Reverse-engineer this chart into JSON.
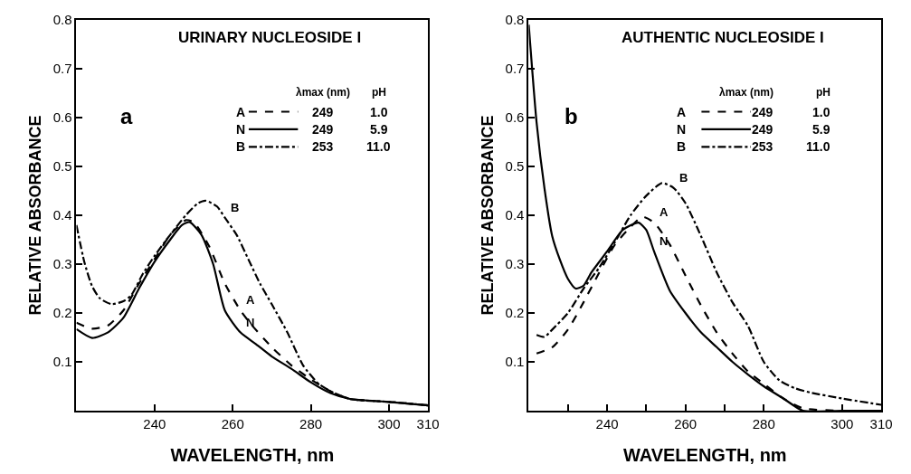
{
  "chart_data": [
    {
      "type": "line",
      "title": "URINARY NUCLEOSIDE I",
      "xlabel": "WAVELENGTH, nm",
      "ylabel": "RELATIVE ABSORBANCE",
      "xlim": [
        220,
        310
      ],
      "xticks": [
        240,
        260,
        280,
        300,
        310
      ],
      "ylim": [
        0,
        0.8
      ],
      "yticks": [
        0.1,
        0.2,
        0.3,
        0.4,
        0.5,
        0.6,
        0.7,
        0.8
      ],
      "legend": "top right",
      "marker": "none",
      "series": [
        {
          "name": "A",
          "color": "#000000",
          "line_style": "dashed",
          "x": [
            220,
            224,
            228,
            232,
            236,
            240,
            244,
            248,
            250,
            254,
            258,
            262,
            265,
            270,
            275,
            280,
            285,
            290,
            300,
            310
          ],
          "values": [
            0.18,
            0.168,
            0.174,
            0.205,
            0.26,
            0.31,
            0.36,
            0.39,
            0.386,
            0.336,
            0.26,
            0.205,
            0.174,
            0.13,
            0.093,
            0.064,
            0.04,
            0.024,
            0.018,
            0.011
          ]
        },
        {
          "name": "N",
          "color": "#000000",
          "line_style": "solid",
          "x": [
            220,
            224,
            228,
            232,
            236,
            240,
            244,
            247,
            249,
            252,
            255,
            258,
            262,
            266,
            270,
            275,
            280,
            285,
            290,
            300,
            310
          ],
          "values": [
            0.167,
            0.149,
            0.16,
            0.19,
            0.25,
            0.305,
            0.35,
            0.38,
            0.386,
            0.36,
            0.3,
            0.205,
            0.16,
            0.136,
            0.111,
            0.086,
            0.058,
            0.036,
            0.024,
            0.018,
            0.011
          ]
        },
        {
          "name": "B",
          "color": "#000000",
          "line_style": "dashdot",
          "x": [
            220,
            222,
            224,
            226,
            229,
            232,
            234,
            237,
            240,
            244,
            248,
            251,
            253,
            256,
            258,
            261,
            264,
            267,
            270,
            274,
            278,
            282,
            285,
            290,
            300,
            310
          ],
          "values": [
            0.38,
            0.305,
            0.255,
            0.23,
            0.218,
            0.224,
            0.236,
            0.28,
            0.317,
            0.36,
            0.4,
            0.424,
            0.43,
            0.418,
            0.395,
            0.36,
            0.31,
            0.26,
            0.218,
            0.16,
            0.093,
            0.055,
            0.04,
            0.024,
            0.018,
            0.011
          ]
        }
      ],
      "annotations": [
        "a",
        "λmax (nm)",
        "pH",
        "249",
        "1.0",
        "249",
        "5.9",
        "253",
        "11.0",
        {
          "text": "B",
          "x": 258,
          "y": 0.395
        },
        {
          "text": "A",
          "x": 262,
          "y": 0.205
        },
        {
          "text": "N",
          "x": 262,
          "y": 0.16
        }
      ]
    },
    {
      "type": "line",
      "title": "AUTHENTIC NUCLEOSIDE I",
      "xlabel": "WAVELENGTH, nm",
      "ylabel": "RELATIVE ABSORBANCE",
      "xlim": [
        220,
        310
      ],
      "xticks": [
        {
          "value": 230,
          "label": null
        },
        240,
        {
          "value": 250,
          "label": null
        },
        260,
        {
          "value": 270,
          "label": null
        },
        280,
        300,
        310
      ],
      "ylim": [
        0,
        0.8
      ],
      "yticks": [
        0.1,
        0.2,
        0.3,
        0.4,
        0.5,
        0.6,
        0.7,
        0.8
      ],
      "legend": "top right",
      "marker": "none",
      "series": [
        {
          "name": "A",
          "color": "#000000",
          "line_style": "dashed",
          "x": [
            222,
            226,
            230,
            234,
            238,
            242,
            246,
            249,
            252,
            256,
            260,
            264,
            268,
            272,
            276,
            280,
            285,
            290,
            300,
            310
          ],
          "values": [
            0.117,
            0.13,
            0.166,
            0.222,
            0.283,
            0.34,
            0.376,
            0.397,
            0.385,
            0.34,
            0.277,
            0.215,
            0.16,
            0.117,
            0.08,
            0.055,
            0.025,
            0.005,
            0.0,
            0.0
          ]
        },
        {
          "name": "N",
          "color": "#000000",
          "line_style": "solid",
          "x": [
            220,
            222,
            224,
            226,
            228,
            230,
            232,
            234,
            236,
            240,
            244,
            248,
            250,
            252,
            256,
            260,
            264,
            268,
            272,
            276,
            280,
            285,
            290,
            300,
            310
          ],
          "values": [
            0.79,
            0.59,
            0.456,
            0.357,
            0.308,
            0.27,
            0.25,
            0.256,
            0.283,
            0.326,
            0.37,
            0.385,
            0.37,
            0.326,
            0.246,
            0.2,
            0.16,
            0.13,
            0.1,
            0.074,
            0.05,
            0.025,
            0.0,
            0.0,
            0.0
          ]
        },
        {
          "name": "B",
          "color": "#000000",
          "line_style": "dashdot",
          "x": [
            222,
            224,
            226,
            230,
            234,
            238,
            242,
            246,
            250,
            254,
            257,
            260,
            264,
            268,
            272,
            276,
            280,
            284,
            288,
            292,
            300,
            310
          ],
          "values": [
            0.155,
            0.151,
            0.166,
            0.2,
            0.25,
            0.293,
            0.345,
            0.4,
            0.44,
            0.466,
            0.456,
            0.425,
            0.357,
            0.283,
            0.222,
            0.173,
            0.1,
            0.062,
            0.046,
            0.037,
            0.025,
            0.012
          ]
        }
      ],
      "annotations": [
        "b",
        "λmax (nm)",
        "pH",
        "249",
        "1.0",
        "249",
        "5.9",
        "253",
        "11.0",
        {
          "text": "B",
          "x": 257,
          "y": 0.456
        },
        {
          "text": "A",
          "x": 252,
          "y": 0.385
        },
        {
          "text": "N",
          "x": 252,
          "y": 0.326
        }
      ]
    }
  ]
}
